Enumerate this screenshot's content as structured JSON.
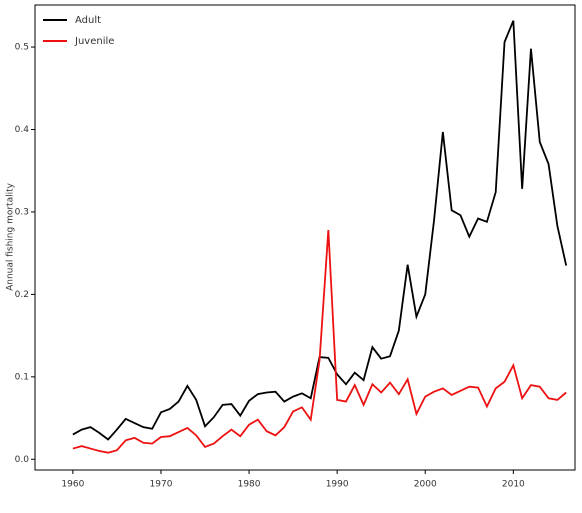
{
  "chart_data": {
    "type": "line",
    "y_label": "Annual fishing mortality",
    "x": [
      1960,
      1961,
      1962,
      1963,
      1964,
      1965,
      1966,
      1967,
      1968,
      1969,
      1970,
      1971,
      1972,
      1973,
      1974,
      1975,
      1976,
      1977,
      1978,
      1979,
      1980,
      1981,
      1982,
      1983,
      1984,
      1985,
      1986,
      1987,
      1988,
      1989,
      1990,
      1991,
      1992,
      1993,
      1994,
      1995,
      1996,
      1997,
      1998,
      1999,
      2000,
      2001,
      2002,
      2003,
      2004,
      2005,
      2006,
      2007,
      2008,
      2009,
      2010,
      2011,
      2012,
      2013,
      2014,
      2015,
      2016
    ],
    "series": [
      {
        "name": "Adult",
        "color": "#000000",
        "values": [
          0.03,
          0.036,
          0.039,
          0.032,
          0.024,
          0.036,
          0.049,
          0.044,
          0.039,
          0.037,
          0.057,
          0.061,
          0.07,
          0.089,
          0.072,
          0.04,
          0.051,
          0.066,
          0.067,
          0.053,
          0.071,
          0.079,
          0.081,
          0.082,
          0.07,
          0.076,
          0.08,
          0.074,
          0.124,
          0.123,
          0.103,
          0.091,
          0.105,
          0.096,
          0.136,
          0.122,
          0.125,
          0.156,
          0.236,
          0.173,
          0.2,
          0.29,
          0.397,
          0.302,
          0.296,
          0.27,
          0.292,
          0.288,
          0.324,
          0.506,
          0.532,
          0.328,
          0.498,
          0.385,
          0.358,
          0.283,
          0.235
        ]
      },
      {
        "name": "Juvenile",
        "color": "#ee1111",
        "values": [
          0.013,
          0.016,
          0.013,
          0.01,
          0.008,
          0.011,
          0.023,
          0.026,
          0.02,
          0.019,
          0.027,
          0.028,
          0.033,
          0.038,
          0.029,
          0.015,
          0.019,
          0.028,
          0.036,
          0.028,
          0.042,
          0.048,
          0.034,
          0.029,
          0.039,
          0.058,
          0.063,
          0.048,
          0.12,
          0.278,
          0.072,
          0.07,
          0.09,
          0.066,
          0.091,
          0.081,
          0.093,
          0.079,
          0.097,
          0.055,
          0.076,
          0.082,
          0.086,
          0.078,
          0.083,
          0.088,
          0.087,
          0.064,
          0.086,
          0.094,
          0.114,
          0.074,
          0.09,
          0.088,
          0.074,
          0.072,
          0.081
        ]
      }
    ],
    "xlim": [
      1955.7,
      2017
    ],
    "xticks": [
      1960,
      1970,
      1980,
      1990,
      2000,
      2010
    ],
    "ylim": [
      -0.013,
      0.551
    ],
    "yticks": [
      {
        "value": 0,
        "label": "0.0"
      },
      0.1,
      0.2,
      0.3,
      0.4,
      0.5
    ],
    "legend": "top-left"
  }
}
